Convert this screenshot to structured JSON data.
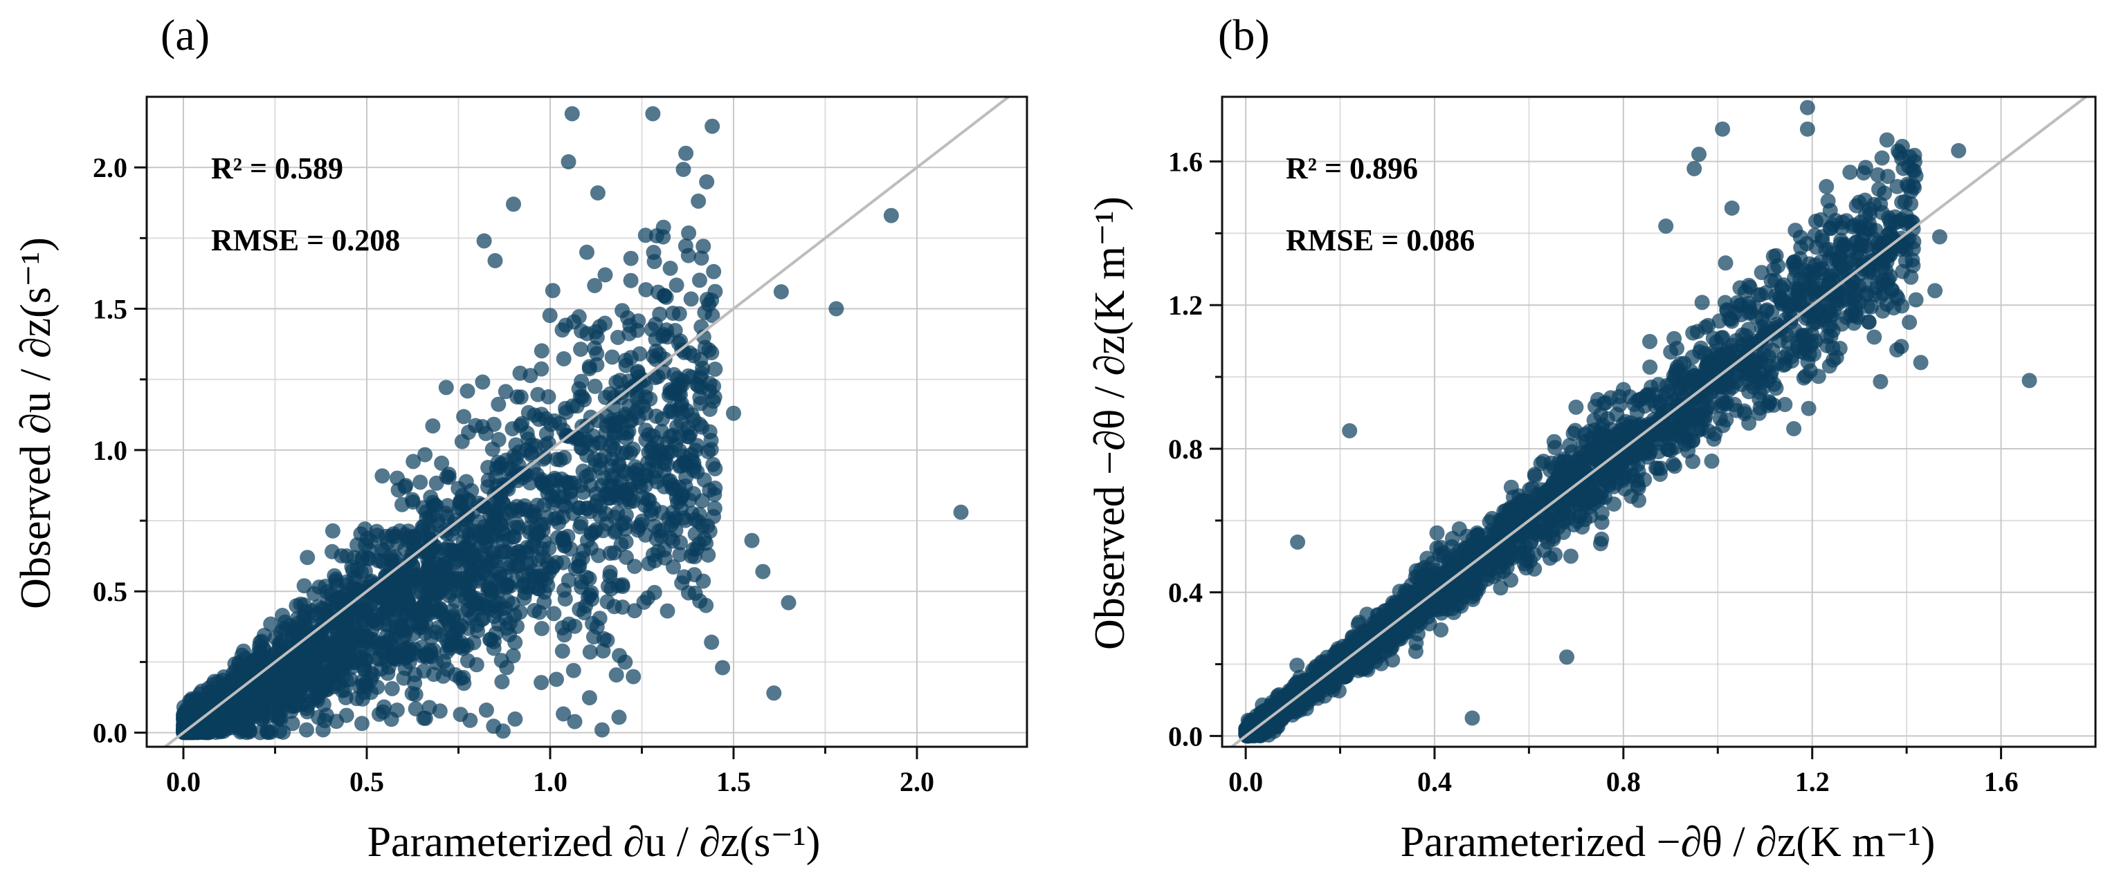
{
  "chart_data": [
    {
      "type": "scatter",
      "panel_label": "(a)",
      "xlabel": "Parameterized ∂u / ∂z(s⁻¹)",
      "ylabel": "Observed ∂u / ∂z(s⁻¹)",
      "xlim": [
        -0.1,
        2.3
      ],
      "ylim": [
        -0.05,
        2.25
      ],
      "xticks": [
        0.0,
        0.5,
        1.0,
        1.5,
        2.0
      ],
      "xtick_labels": [
        "0.0",
        "0.5",
        "1.0",
        "1.5",
        "2.0"
      ],
      "yticks": [
        0.0,
        0.5,
        1.0,
        1.5,
        2.0
      ],
      "ytick_labels": [
        "0.0",
        "0.5",
        "1.0",
        "1.5",
        "2.0"
      ],
      "grid": true,
      "reference_line": "1:1",
      "annotations": [
        "R² = 0.589",
        "RMSE = 0.208"
      ],
      "marker_color": "#0a3d5c",
      "outliers": [
        {
          "x": 1.06,
          "y": 2.19
        },
        {
          "x": 1.28,
          "y": 2.19
        },
        {
          "x": 1.37,
          "y": 2.05
        },
        {
          "x": 1.05,
          "y": 2.02
        },
        {
          "x": 1.93,
          "y": 1.83
        },
        {
          "x": 1.13,
          "y": 1.91
        },
        {
          "x": 0.9,
          "y": 1.87
        },
        {
          "x": 0.82,
          "y": 1.74
        },
        {
          "x": 0.85,
          "y": 1.67
        },
        {
          "x": 1.1,
          "y": 1.7
        },
        {
          "x": 1.26,
          "y": 1.76
        },
        {
          "x": 1.63,
          "y": 1.56
        },
        {
          "x": 1.78,
          "y": 1.5
        },
        {
          "x": 1.44,
          "y": 1.53
        },
        {
          "x": 1.5,
          "y": 1.13
        },
        {
          "x": 2.12,
          "y": 0.78
        },
        {
          "x": 1.65,
          "y": 0.46
        },
        {
          "x": 1.61,
          "y": 0.14
        },
        {
          "x": 1.47,
          "y": 0.23
        },
        {
          "x": 1.44,
          "y": 0.32
        },
        {
          "x": 1.55,
          "y": 0.68
        },
        {
          "x": 1.58,
          "y": 0.57
        },
        {
          "x": 1.22,
          "y": 1.6
        },
        {
          "x": 1.15,
          "y": 1.62
        }
      ],
      "cloud": {
        "n": 2600,
        "x_max": 1.45,
        "x_power": 1.55,
        "slope": 0.78,
        "spread": 0.55,
        "seed": 11
      }
    },
    {
      "type": "scatter",
      "panel_label": "(b)",
      "xlabel": "Parameterized −∂θ / ∂z(K m⁻¹)",
      "ylabel": "Observed −∂θ / ∂z(K m⁻¹)",
      "xlim": [
        -0.05,
        1.8
      ],
      "ylim": [
        -0.03,
        1.78
      ],
      "xticks": [
        0.0,
        0.4,
        0.8,
        1.2,
        1.6
      ],
      "xtick_labels": [
        "0.0",
        "0.4",
        "0.8",
        "1.2",
        "1.6"
      ],
      "yticks": [
        0.0,
        0.4,
        0.8,
        1.2,
        1.6
      ],
      "ytick_labels": [
        "0.0",
        "0.4",
        "0.8",
        "1.2",
        "1.6"
      ],
      "grid": true,
      "reference_line": "1:1",
      "annotations": [
        "R² = 0.896",
        "RMSE = 0.086"
      ],
      "marker_color": "#0a3d5c",
      "outliers": [
        {
          "x": 1.19,
          "y": 1.75
        },
        {
          "x": 1.19,
          "y": 1.69
        },
        {
          "x": 1.01,
          "y": 1.69
        },
        {
          "x": 0.96,
          "y": 1.62
        },
        {
          "x": 0.95,
          "y": 1.58
        },
        {
          "x": 1.51,
          "y": 1.63
        },
        {
          "x": 1.66,
          "y": 0.99
        },
        {
          "x": 1.47,
          "y": 1.39
        },
        {
          "x": 1.46,
          "y": 1.24
        },
        {
          "x": 1.43,
          "y": 1.04
        },
        {
          "x": 0.11,
          "y": 0.54
        },
        {
          "x": 0.22,
          "y": 0.85
        },
        {
          "x": 1.38,
          "y": 1.53
        },
        {
          "x": 1.03,
          "y": 1.47
        },
        {
          "x": 1.28,
          "y": 1.57
        },
        {
          "x": 0.89,
          "y": 1.42
        },
        {
          "x": 1.23,
          "y": 1.53
        },
        {
          "x": 0.68,
          "y": 0.22
        },
        {
          "x": 0.48,
          "y": 0.05
        }
      ],
      "cloud": {
        "n": 2600,
        "x_max": 1.42,
        "x_power": 1.45,
        "slope": 1.0,
        "spread": 0.18,
        "seed": 23
      }
    }
  ]
}
